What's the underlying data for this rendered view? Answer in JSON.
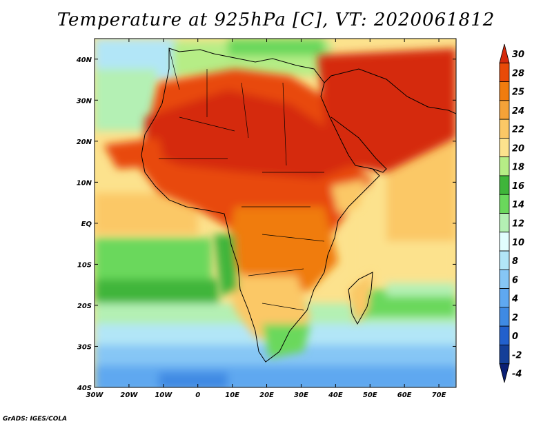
{
  "title": "Temperature at 925hPa [C], VT: 2020061812",
  "credit": "GrADS: IGES/COLA",
  "map": {
    "region": "Africa and Arabian Peninsula",
    "lon_range": [
      -30,
      75
    ],
    "lat_range": [
      -40,
      45
    ],
    "x_ticks": [
      "30W",
      "20W",
      "10W",
      "0",
      "10E",
      "20E",
      "30E",
      "40E",
      "50E",
      "60E",
      "70E"
    ],
    "y_ticks": [
      "40N",
      "30N",
      "20N",
      "10N",
      "EQ",
      "10S",
      "20S",
      "30S",
      "40S"
    ]
  },
  "colorbar": {
    "labels": [
      "30",
      "28",
      "25",
      "24",
      "22",
      "20",
      "18",
      "16",
      "14",
      "12",
      "10",
      "8",
      "6",
      "4",
      "2",
      "0",
      "-2",
      "-4"
    ],
    "colors": [
      "#d52a0c",
      "#e84a08",
      "#f07c0e",
      "#f5a238",
      "#fbc866",
      "#fce28d",
      "#b6ed86",
      "#3fb53a",
      "#6ad85c",
      "#b4f0b4",
      "#e1fefe",
      "#b2e6f7",
      "#86c6f5",
      "#5fa8f0",
      "#3f8ae3",
      "#2260cc",
      "#143f98",
      "#0a1f74"
    ]
  }
}
